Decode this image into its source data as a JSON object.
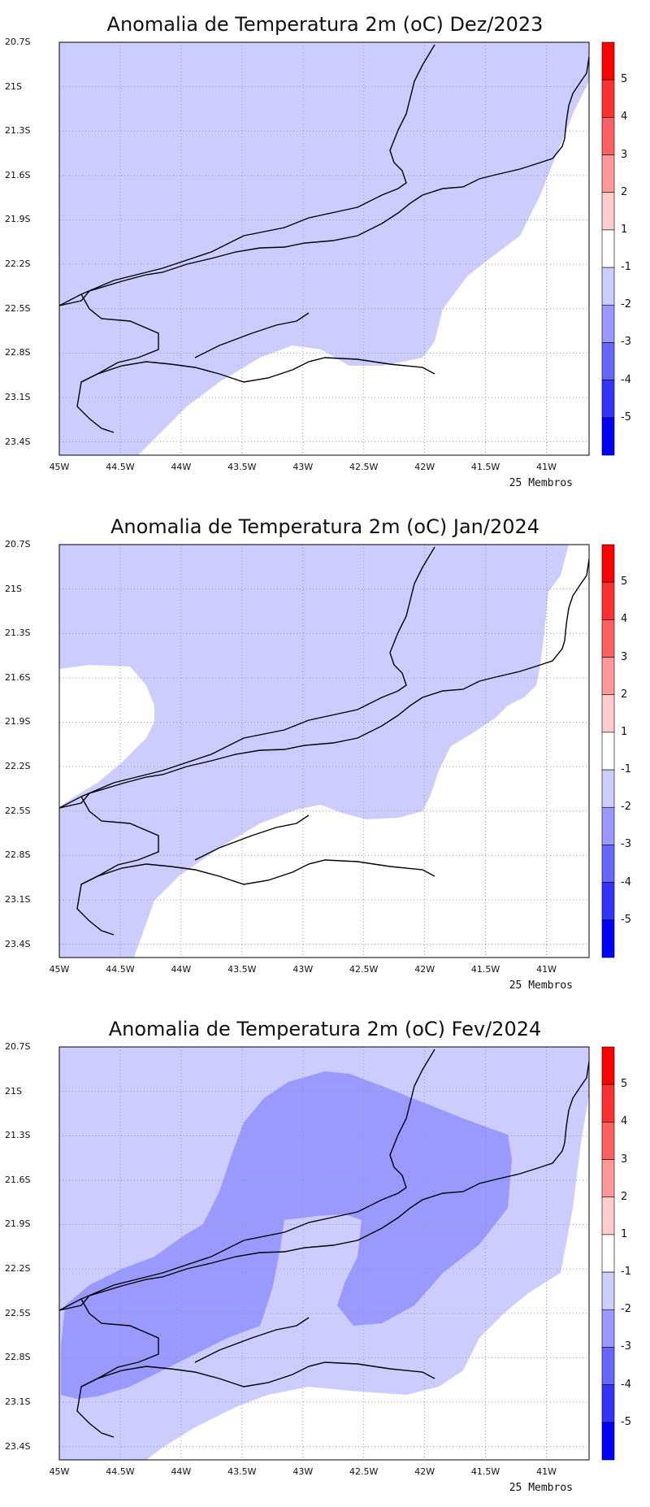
{
  "maps": [
    {
      "title": "Anomalia de Temperatura 2m (oC) Dez/2023",
      "footer": "25 Membros",
      "style": "dez"
    },
    {
      "title": "Anomalia de Temperatura 2m (oC) Jan/2024",
      "footer": "25 Membros",
      "style": "jan"
    },
    {
      "title": "Anomalia de Temperatura 2m (oC) Fev/2024",
      "footer": "25 Membros",
      "style": "fev"
    }
  ],
  "axes": {
    "lat_labels": [
      "20.7S",
      "21S",
      "21.3S",
      "21.6S",
      "21.9S",
      "22.2S",
      "22.5S",
      "22.8S",
      "23.1S",
      "23.4S"
    ],
    "lon_labels": [
      "45W",
      "44.5W",
      "44W",
      "43.5W",
      "43W",
      "42.5W",
      "42W",
      "41.5W",
      "41W"
    ]
  },
  "colorbar": {
    "labels": [
      "5",
      "4",
      "3",
      "2",
      "1",
      "-1",
      "-2",
      "-3",
      "-4",
      "-5"
    ],
    "colors": [
      "#ff0000",
      "#ff3030",
      "#ff6060",
      "#ff9999",
      "#ffcccc",
      "#ffffff",
      "#ccccff",
      "#9999ff",
      "#6666ff",
      "#3333ff",
      "#0000ff"
    ]
  },
  "fill_colors": {
    "light": "#ccccff",
    "medium": "#9999ff",
    "dark": "#8080ee"
  }
}
